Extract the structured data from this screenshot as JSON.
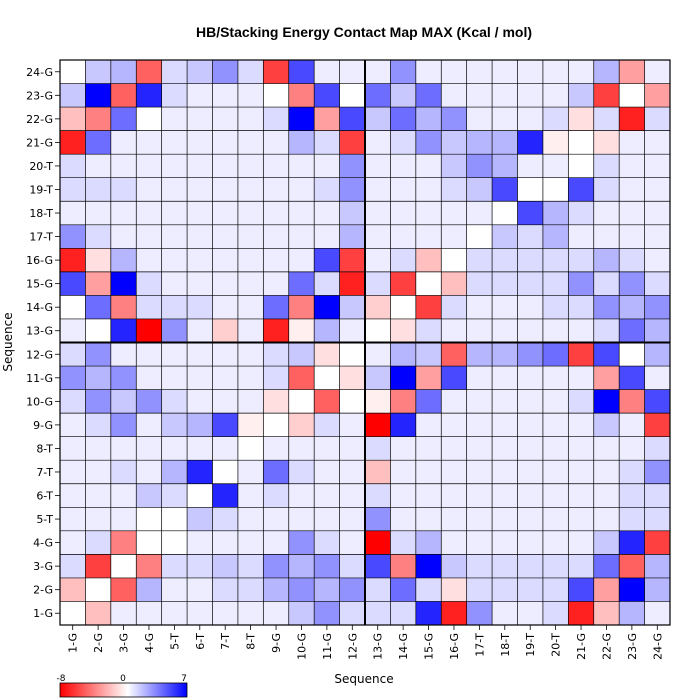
{
  "chart_data": {
    "type": "heatmap",
    "title": "HB/Stacking Energy Contact Map MAX (Kcal / mol)",
    "xlabel": "Sequence",
    "ylabel": "Sequence",
    "categories": [
      "1-G",
      "2-G",
      "3-G",
      "4-G",
      "5-T",
      "6-T",
      "7-T",
      "8-T",
      "9-G",
      "10-G",
      "11-G",
      "12-G",
      "13-G",
      "14-G",
      "15-G",
      "16-G",
      "17-T",
      "18-T",
      "19-T",
      "20-T",
      "21-G",
      "22-G",
      "23-G",
      "24-G"
    ],
    "colorbar": {
      "min": -8,
      "mid": 0,
      "max": 7,
      "min_label": "-8",
      "mid_label": "0",
      "max_label": "7",
      "low_color": "#ff0000",
      "mid_color": "#ffffff",
      "high_color": "#0000ff"
    },
    "divider_after_index": 12,
    "rows": [
      {
        "label": "24-G",
        "values": [
          0,
          1.5,
          2,
          -5,
          1,
          1.5,
          3,
          1,
          -6,
          5,
          0.5,
          0.5,
          0.5,
          3,
          0.5,
          0.5,
          0.5,
          0.5,
          0.5,
          0.5,
          0.5,
          2,
          -3,
          0.5
        ]
      },
      {
        "label": "23-G",
        "values": [
          1.5,
          7,
          -5,
          6,
          1,
          0.5,
          0.5,
          0.5,
          0,
          -4,
          5,
          0,
          4,
          1.5,
          4,
          0.5,
          0.5,
          0.5,
          0.5,
          0.5,
          1.5,
          -6,
          0,
          -3
        ]
      },
      {
        "label": "22-G",
        "values": [
          -2,
          -4,
          4,
          0,
          0.5,
          0.5,
          0.5,
          0.5,
          1,
          7,
          -3,
          5,
          1.5,
          4,
          2,
          3,
          0.5,
          0.5,
          0.5,
          1,
          -1,
          1,
          -7,
          1
        ]
      },
      {
        "label": "21-G",
        "values": [
          -7,
          4,
          0.5,
          0.5,
          0.5,
          0.5,
          0.5,
          0.5,
          0.5,
          2,
          1,
          -6,
          0.5,
          1,
          3,
          1.5,
          2,
          2,
          6,
          -0.5,
          0,
          -1,
          0.5,
          0.5
        ]
      },
      {
        "label": "20-T",
        "values": [
          1,
          0.5,
          0.5,
          0.5,
          0.5,
          0.5,
          0.5,
          0.5,
          0.5,
          0.5,
          0.5,
          3,
          0.5,
          0.5,
          0.5,
          1.5,
          3,
          2,
          0.5,
          0.5,
          0,
          1,
          0.5,
          0.5
        ]
      },
      {
        "label": "19-T",
        "values": [
          1,
          1,
          1,
          0.5,
          0.5,
          0.5,
          0.5,
          0.5,
          0.5,
          0.5,
          1,
          3,
          0.5,
          0.5,
          0.5,
          1,
          1.5,
          5,
          0,
          0,
          5,
          1,
          0.5,
          0.5
        ]
      },
      {
        "label": "18-T",
        "values": [
          0.5,
          0.5,
          0.5,
          0.5,
          0.5,
          0.5,
          0.5,
          0.5,
          0.5,
          0.5,
          0.5,
          1.5,
          0.5,
          0.5,
          0.5,
          0.5,
          0.5,
          0,
          5,
          2,
          1,
          0.5,
          0.5,
          0.5
        ]
      },
      {
        "label": "17-T",
        "values": [
          3,
          1,
          0.5,
          0.5,
          0.5,
          0.5,
          0.5,
          0.5,
          0.5,
          0.5,
          0.5,
          2,
          0.5,
          0.5,
          0.5,
          0.5,
          0,
          1.5,
          1,
          2,
          0.5,
          0.5,
          0.5,
          0.5
        ]
      },
      {
        "label": "16-G",
        "values": [
          -7,
          -1,
          2,
          0.5,
          0.5,
          0.5,
          0.5,
          0.5,
          0.5,
          0.5,
          5,
          -6,
          0.5,
          1,
          -2,
          0,
          1,
          1,
          1,
          1,
          1,
          2,
          1,
          0.5
        ]
      },
      {
        "label": "15-G",
        "values": [
          5,
          -3,
          7,
          1,
          0.5,
          0.5,
          0.5,
          0.5,
          0.5,
          4,
          1,
          -7,
          1,
          -6,
          0,
          -2,
          1,
          1,
          1,
          1,
          3,
          1,
          3,
          1
        ]
      },
      {
        "label": "14-G",
        "values": [
          0,
          4,
          -4,
          1,
          1,
          1,
          0.5,
          0.5,
          4,
          -4,
          7,
          1.5,
          -1.5,
          0,
          -6,
          1,
          0.5,
          0.5,
          0.5,
          1,
          1,
          3,
          2,
          3
        ]
      },
      {
        "label": "13-G",
        "values": [
          0.5,
          0,
          6,
          -8,
          3,
          0.5,
          -1.5,
          0.5,
          -7,
          -0.5,
          2,
          0.5,
          0,
          -1,
          1,
          0.5,
          0.5,
          0.5,
          0.5,
          0.5,
          0.5,
          1,
          4,
          2
        ]
      },
      {
        "label": "12-G",
        "values": [
          1,
          3,
          0.5,
          0.5,
          0.5,
          0.5,
          0.5,
          0.5,
          1,
          1.5,
          -1,
          0,
          0.5,
          2,
          1.5,
          -5,
          2,
          2,
          3,
          4,
          -6,
          5,
          0,
          2
        ]
      },
      {
        "label": "11-G",
        "values": [
          3,
          2,
          3,
          0.5,
          0.5,
          0.5,
          0.5,
          0.5,
          1,
          -5,
          0,
          -1,
          1.5,
          7,
          -3,
          5,
          0.5,
          0.5,
          0.5,
          0.5,
          0.5,
          -3,
          5,
          0.5
        ]
      },
      {
        "label": "10-G",
        "values": [
          1,
          3,
          1.5,
          3,
          1,
          0.5,
          0.5,
          0.5,
          -1,
          0,
          -5,
          0,
          -0.5,
          -4,
          4,
          0.5,
          0.5,
          0.5,
          0.5,
          0.5,
          1,
          7,
          -4,
          5
        ]
      },
      {
        "label": "9-G",
        "values": [
          0.5,
          1,
          3,
          0.5,
          1.5,
          2,
          5,
          -0.5,
          0,
          -1.5,
          1,
          0.5,
          -8,
          6,
          0.5,
          0.5,
          0.5,
          0.5,
          0.5,
          0.5,
          0.5,
          1.5,
          0.5,
          -6
        ]
      },
      {
        "label": "8-T",
        "values": [
          0.5,
          0.5,
          0.5,
          0.5,
          0.5,
          0.5,
          0.5,
          0,
          0.5,
          0.5,
          0.5,
          0.5,
          1,
          0.5,
          0.5,
          0.5,
          0.5,
          0.5,
          0.5,
          0.5,
          0.5,
          0.5,
          0.5,
          1
        ]
      },
      {
        "label": "7-T",
        "values": [
          0.5,
          0.5,
          1,
          0.5,
          2,
          6,
          0,
          0.5,
          4,
          1,
          0.5,
          0.5,
          -2,
          0.5,
          0.5,
          0.5,
          0.5,
          0.5,
          0.5,
          0.5,
          0.5,
          0.5,
          1,
          3
        ]
      },
      {
        "label": "6-T",
        "values": [
          0.5,
          0.5,
          0.5,
          1.5,
          1,
          0,
          6,
          0.5,
          1,
          0.5,
          0.5,
          0.5,
          1,
          0.5,
          0.5,
          0.5,
          0.5,
          0.5,
          0.5,
          0.5,
          0.5,
          0.5,
          1,
          1
        ]
      },
      {
        "label": "5-T",
        "values": [
          0.5,
          0.5,
          0.5,
          0,
          0,
          1.5,
          1,
          0.5,
          0.5,
          0.5,
          0.5,
          0.5,
          3,
          0.5,
          0.5,
          0.5,
          0.5,
          0.5,
          0.5,
          0.5,
          0.5,
          0.5,
          1,
          1
        ]
      },
      {
        "label": "4-G",
        "values": [
          0.5,
          1,
          -4,
          0,
          0,
          0.5,
          0.5,
          0.5,
          0.5,
          3,
          1,
          0.5,
          -8,
          1,
          2,
          0.5,
          0.5,
          0.5,
          0.5,
          0.5,
          0.5,
          1.5,
          6,
          -6
        ]
      },
      {
        "label": "3-G",
        "values": [
          1,
          -6,
          0,
          -4,
          1,
          1,
          1.5,
          1,
          3,
          2,
          3,
          1,
          5,
          -4,
          7,
          1.5,
          1,
          1,
          1,
          1,
          1,
          4,
          -5,
          2
        ]
      },
      {
        "label": "2-G",
        "values": [
          -2,
          0,
          -5,
          2,
          0.5,
          0.5,
          1,
          1,
          2,
          3,
          2,
          3,
          1,
          4,
          1,
          -1,
          1,
          1,
          1,
          1,
          5,
          -3,
          7,
          2
        ]
      },
      {
        "label": "1-G",
        "values": [
          0,
          -2,
          0.5,
          0.5,
          0.5,
          0.5,
          0.5,
          0.5,
          0.5,
          1.5,
          3,
          1,
          1,
          1,
          6,
          -7,
          3,
          0.5,
          0.5,
          1,
          -7,
          -2,
          2,
          0.5
        ]
      }
    ]
  }
}
